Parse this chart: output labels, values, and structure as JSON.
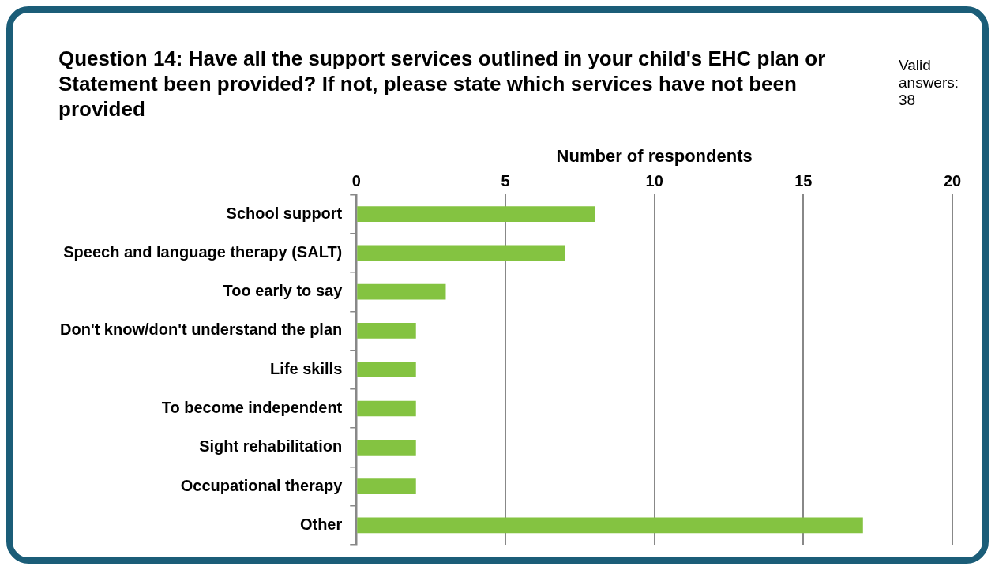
{
  "chart_data": {
    "type": "bar",
    "orientation": "horizontal",
    "title": "Question 14: Have all the support services outlined in your child's EHC plan or Statement been provided? If not, please state which services have not been provided",
    "annotations": [
      "Valid answers: 38"
    ],
    "xlabel": "Number of respondents",
    "categories": [
      "School support",
      "Speech and language therapy (SALT)",
      "Too early to say",
      "Don't know/don't understand the plan",
      "Life skills",
      "To become independent",
      "Sight rehabilitation",
      "Occupational therapy",
      "Other"
    ],
    "values": [
      8,
      7,
      3,
      2,
      2,
      2,
      2,
      2,
      17
    ],
    "color": "#84c341",
    "xlim": [
      0,
      20
    ],
    "xticks": [
      0,
      5,
      10,
      15,
      20
    ],
    "grid": "x"
  }
}
